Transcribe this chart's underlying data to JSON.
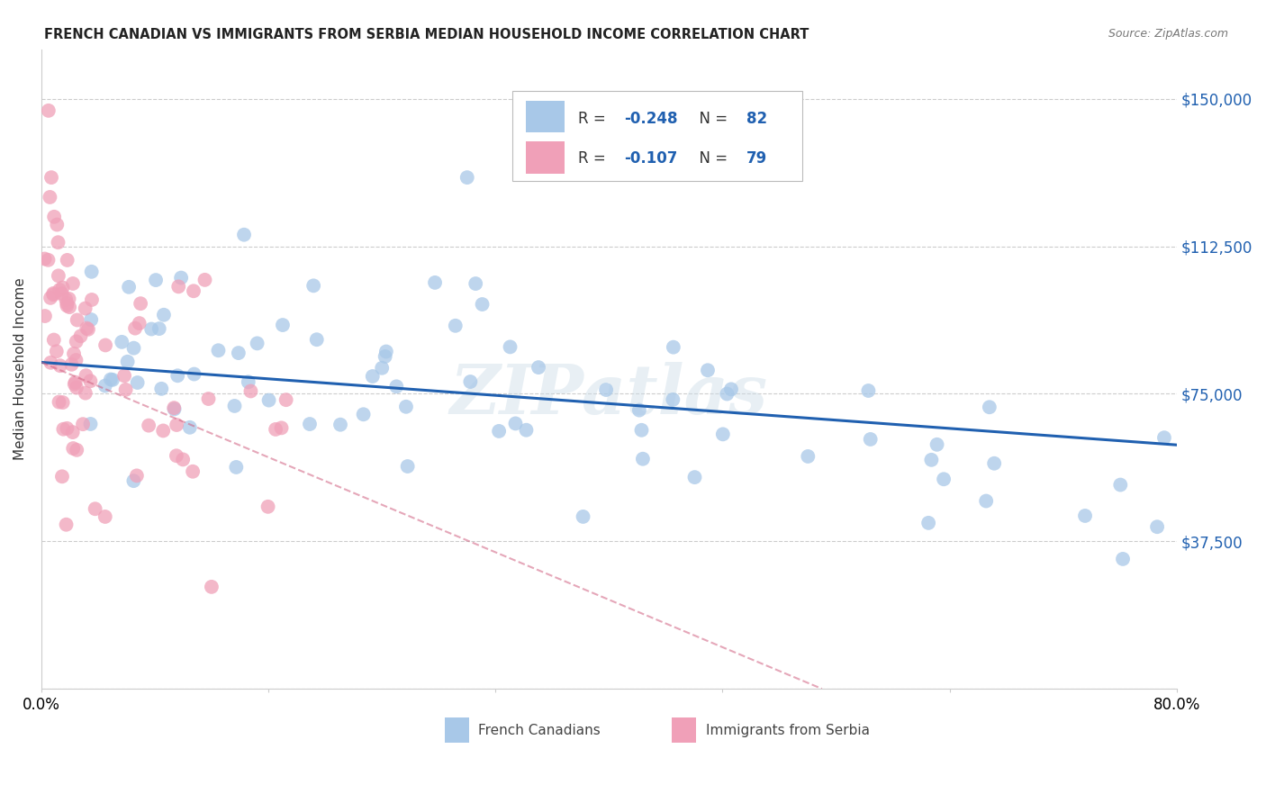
{
  "title": "FRENCH CANADIAN VS IMMIGRANTS FROM SERBIA MEDIAN HOUSEHOLD INCOME CORRELATION CHART",
  "source": "Source: ZipAtlas.com",
  "ylabel": "Median Household Income",
  "xlim": [
    0.0,
    0.8
  ],
  "ylim": [
    0,
    162500
  ],
  "yticks": [
    0,
    37500,
    75000,
    112500,
    150000
  ],
  "ytick_labels": [
    "",
    "$37,500",
    "$75,000",
    "$112,500",
    "$150,000"
  ],
  "xticks": [
    0.0,
    0.16,
    0.32,
    0.48,
    0.64,
    0.8
  ],
  "xtick_labels": [
    "0.0%",
    "",
    "",
    "",
    "",
    "80.0%"
  ],
  "r_blue": -0.248,
  "n_blue": 82,
  "r_pink": -0.107,
  "n_pink": 79,
  "blue_color": "#a8c8e8",
  "pink_color": "#f0a0b8",
  "blue_line_color": "#2060b0",
  "pink_line_color": "#d06080",
  "watermark": "ZIPatlas",
  "blue_line_x0": 0.0,
  "blue_line_y0": 83000,
  "blue_line_x1": 0.8,
  "blue_line_y1": 62000,
  "pink_line_x0": 0.0,
  "pink_line_y0": 83000,
  "pink_line_x1": 0.55,
  "pink_line_y1": 0
}
